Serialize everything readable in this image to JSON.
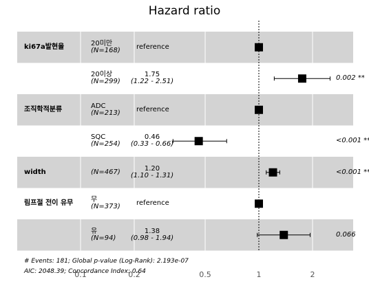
{
  "chart_data": {
    "type": "forest",
    "title": "Hazard ratio",
    "x_scale": "log",
    "xlim": [
      0.1,
      2.7
    ],
    "x_ticks": [
      "0.1",
      "0.2",
      "0.5",
      "1",
      "2"
    ],
    "x_tick_values": [
      0.1,
      0.2,
      0.5,
      1,
      2
    ],
    "reference_line": 1,
    "rows": [
      {
        "variable": "ki67a발현율",
        "level": "20미만",
        "n": "(N=168)",
        "hr": 1,
        "hr_text": "",
        "ci_text": "reference",
        "ci": null,
        "p_text": "",
        "shaded": true
      },
      {
        "variable": "",
        "level": "20이상",
        "n": "(N=299)",
        "hr": 1.75,
        "hr_text": "1.75",
        "ci_text": "(1.22 - 2.51)",
        "ci": [
          1.22,
          2.51
        ],
        "p_text": "0.002 **",
        "shaded": false
      },
      {
        "variable": "조직학적분류",
        "level": "ADC",
        "n": "(N=213)",
        "hr": 1,
        "hr_text": "",
        "ci_text": "reference",
        "ci": null,
        "p_text": "",
        "shaded": true
      },
      {
        "variable": "",
        "level": "SQC",
        "n": "(N=254)",
        "hr": 0.46,
        "hr_text": "0.46",
        "ci_text": "(0.33 - 0.66)",
        "ci": [
          0.33,
          0.66
        ],
        "p_text": "<0.001 ***",
        "shaded": false
      },
      {
        "variable": "width",
        "level": "",
        "n": "(N=467)",
        "hr": 1.2,
        "hr_text": "1.20",
        "ci_text": "(1.10 - 1.31)",
        "ci": [
          1.1,
          1.31
        ],
        "p_text": "<0.001 ***",
        "shaded": true
      },
      {
        "variable": "림프절 전이 유무",
        "level": "무",
        "n": "(N=373)",
        "hr": 1,
        "hr_text": "",
        "ci_text": "reference",
        "ci": null,
        "p_text": "",
        "shaded": false
      },
      {
        "variable": "",
        "level": "유",
        "n": "(N=94)",
        "hr": 1.38,
        "hr_text": "1.38",
        "ci_text": "(0.98 - 1.94)",
        "ci": [
          0.98,
          1.94
        ],
        "p_text": "0.066",
        "shaded": true
      }
    ],
    "footnotes": [
      "# Events: 181; Global p-value (Log-Rank): 2.193e-07",
      "AIC: 2048.39; Concordance Index: 0.64"
    ],
    "colors": {
      "shade": "#d3d3d3",
      "grid": "#ffffff",
      "marker": "#000000",
      "tick": "#555555"
    }
  }
}
